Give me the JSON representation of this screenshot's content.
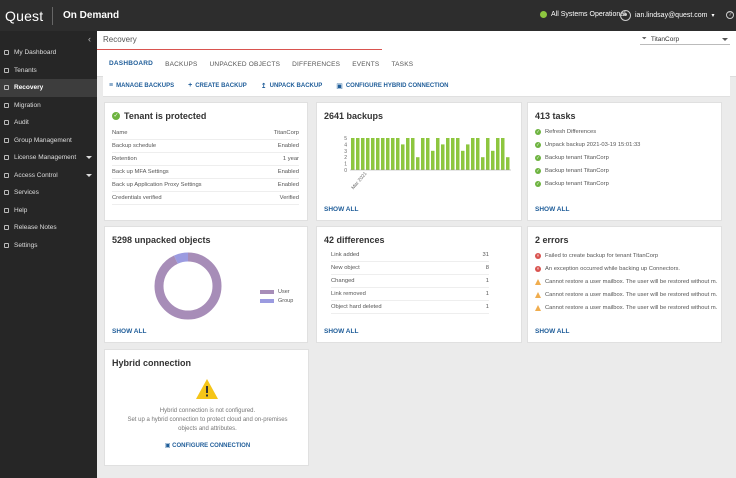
{
  "app": {
    "brand": "Quest",
    "product": "On Demand"
  },
  "status": {
    "text": "All Systems Operational",
    "color": "#8dc63f"
  },
  "user": {
    "email": "ian.lindsay@quest.com"
  },
  "sidebar": {
    "items": [
      {
        "label": "My Dashboard"
      },
      {
        "label": "Tenants"
      },
      {
        "label": "Recovery",
        "active": true
      },
      {
        "label": "Migration"
      },
      {
        "label": "Audit"
      },
      {
        "label": "Group Management"
      },
      {
        "label": "License Management",
        "caret": true
      },
      {
        "label": "Access Control",
        "caret": true
      },
      {
        "label": "Services"
      },
      {
        "label": "Help"
      },
      {
        "label": "Release Notes"
      },
      {
        "label": "Settings"
      }
    ]
  },
  "header": {
    "title": "Recovery",
    "tenant": "TitanCorp",
    "tabs": [
      {
        "label": "Dashboard",
        "active": true
      },
      {
        "label": "Backups"
      },
      {
        "label": "Unpacked Objects"
      },
      {
        "label": "Differences"
      },
      {
        "label": "Events"
      },
      {
        "label": "Tasks"
      }
    ]
  },
  "toolbar": {
    "manage": "Manage Backups",
    "create": "Create Backup",
    "unpack": "Unpack Backup",
    "configure": "Configure Hybrid Connection"
  },
  "tenant_card": {
    "title": "Tenant is protected",
    "rows": [
      {
        "label": "Name",
        "value": "TitanCorp"
      },
      {
        "label": "Backup schedule",
        "value": "Enabled"
      },
      {
        "label": "Retention",
        "value": "1 year"
      },
      {
        "label": "Back up MFA Settings",
        "value": "Enabled"
      },
      {
        "label": "Back up Application Proxy Settings",
        "value": "Enabled"
      },
      {
        "label": "Credentials verified",
        "value": "Verified"
      }
    ]
  },
  "backups_card": {
    "title": "2641 backups",
    "show_all": "SHOW ALL",
    "x_label": "Mar 2021",
    "y_ticks": [
      "5",
      "4",
      "3",
      "2",
      "1",
      "0"
    ],
    "bar_color": "#8dc63f",
    "values": [
      5,
      5,
      5,
      5,
      5,
      5,
      5,
      5,
      5,
      5,
      4,
      5,
      5,
      2,
      5,
      5,
      3,
      5,
      4,
      5,
      5,
      5,
      3,
      4,
      5,
      5,
      2,
      5,
      3,
      5,
      5,
      2
    ]
  },
  "tasks_card": {
    "title": "413 tasks",
    "show_all": "SHOW ALL",
    "items": [
      "Refresh Differences",
      "Unpack backup 2021-03-19 15:01:33",
      "Backup tenant TitanCorp",
      "Backup tenant TitanCorp",
      "Backup tenant TitanCorp"
    ]
  },
  "unpacked_card": {
    "title": "5298 unpacked objects",
    "show_all": "SHOW ALL",
    "legend": [
      {
        "name": "User",
        "color": "#a78db8",
        "value": 0.93
      },
      {
        "name": "Group",
        "color": "#9b9be0",
        "value": 0.07
      }
    ]
  },
  "differences_card": {
    "title": "42 differences",
    "show_all": "SHOW ALL",
    "rows": [
      {
        "label": "Link added",
        "value": "31"
      },
      {
        "label": "New object",
        "value": "8"
      },
      {
        "label": "Changed",
        "value": "1"
      },
      {
        "label": "Link removed",
        "value": "1"
      },
      {
        "label": "Object hard deleted",
        "value": "1"
      }
    ]
  },
  "errors_card": {
    "title": "2 errors",
    "show_all": "SHOW ALL",
    "items": [
      {
        "type": "error",
        "text": "Failed to create backup for tenant TitanCorp"
      },
      {
        "type": "error",
        "text": "An exception occurred while backing up Connectors."
      },
      {
        "type": "warning",
        "text": "Cannot restore a user mailbox. The user will be restored without m..."
      },
      {
        "type": "warning",
        "text": "Cannot restore a user mailbox. The user will be restored without m..."
      },
      {
        "type": "warning",
        "text": "Cannot restore a user mailbox. The user will be restored without m..."
      }
    ]
  },
  "hybrid_card": {
    "title": "Hybrid connection",
    "line1": "Hybrid connection is not configured.",
    "line2": "Set up a hybrid connection to protect cloud and on-premises",
    "line3": "objects and attributes.",
    "configure": "CONFIGURE CONNECTION"
  }
}
